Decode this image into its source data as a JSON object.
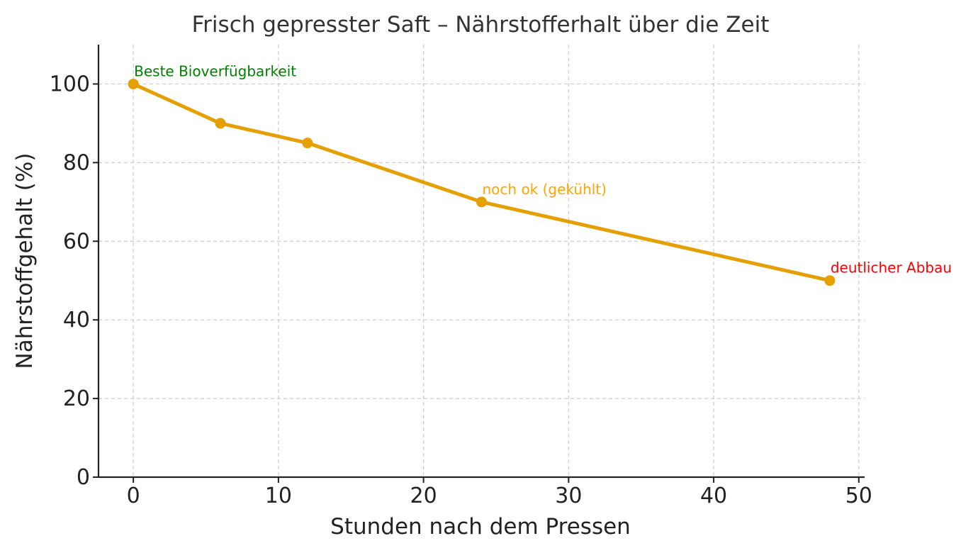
{
  "chart_data": {
    "type": "line",
    "title": "Frisch gepresster Saft – Nährstofferhalt über die Zeit",
    "xlabel": "Stunden nach dem Pressen",
    "ylabel": "Nährstoffgehalt (%)",
    "xlim": [
      -2.4,
      50.4
    ],
    "ylim": [
      0,
      110
    ],
    "xticks": [
      0,
      10,
      20,
      30,
      40,
      50
    ],
    "yticks": [
      0,
      20,
      40,
      60,
      80,
      100
    ],
    "grid": true,
    "series": [
      {
        "x": [
          0,
          6,
          12,
          24,
          48
        ],
        "y": [
          100,
          90,
          85,
          70,
          50
        ],
        "color": "#E69F00",
        "marker": "circle"
      }
    ],
    "annotations": [
      {
        "text": "Beste Bioverfügbarkeit",
        "x": 0,
        "y": 100,
        "color": "#008000"
      },
      {
        "text": "noch ok (gekühlt)",
        "x": 24,
        "y": 70,
        "color": "#FFA500"
      },
      {
        "text": "deutlicher Abbau",
        "x": 48,
        "y": 50,
        "color": "#FF0000"
      }
    ]
  }
}
